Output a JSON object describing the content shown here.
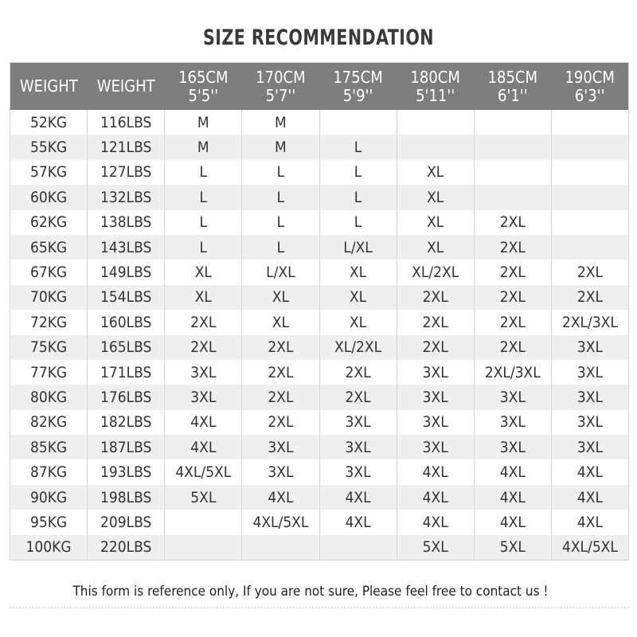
{
  "title": "SIZE RECOMMENDATION",
  "headers": [
    {
      "line1": "WEIGHT",
      "line2": ""
    },
    {
      "line1": "WEIGHT",
      "line2": ""
    },
    {
      "line1": "165CM",
      "line2": "5'5''"
    },
    {
      "line1": "170CM",
      "line2": "5'7''"
    },
    {
      "line1": "175CM",
      "line2": "5'9''"
    },
    {
      "line1": "180CM",
      "line2": "5'11''"
    },
    {
      "line1": "185CM",
      "line2": "6'1''"
    },
    {
      "line1": "190CM",
      "line2": "6'3''"
    }
  ],
  "rows": [
    [
      "52KG",
      "116LBS",
      "M",
      "M",
      "",
      "",
      "",
      ""
    ],
    [
      "55KG",
      "121LBS",
      "M",
      "M",
      "L",
      "",
      "",
      ""
    ],
    [
      "57KG",
      "127LBS",
      "L",
      "L",
      "L",
      "XL",
      "",
      ""
    ],
    [
      "60KG",
      "132LBS",
      "L",
      "L",
      "L",
      "XL",
      "",
      ""
    ],
    [
      "62KG",
      "138LBS",
      "L",
      "L",
      "L",
      "XL",
      "2XL",
      ""
    ],
    [
      "65KG",
      "143LBS",
      "L",
      "L",
      "L/XL",
      "XL",
      "2XL",
      ""
    ],
    [
      "67KG",
      "149LBS",
      "XL",
      "L/XL",
      "XL",
      "XL/2XL",
      "2XL",
      "2XL"
    ],
    [
      "70KG",
      "154LBS",
      "XL",
      "XL",
      "XL",
      "2XL",
      "2XL",
      "2XL"
    ],
    [
      "72KG",
      "160LBS",
      "2XL",
      "XL",
      "XL",
      "2XL",
      "2XL",
      "2XL/3XL"
    ],
    [
      "75KG",
      "165LBS",
      "2XL",
      "2XL",
      "XL/2XL",
      "2XL",
      "2XL",
      "3XL"
    ],
    [
      "77KG",
      "171LBS",
      "3XL",
      "2XL",
      "2XL",
      "3XL",
      "2XL/3XL",
      "3XL"
    ],
    [
      "80KG",
      "176LBS",
      "3XL",
      "2XL",
      "2XL",
      "3XL",
      "3XL",
      "3XL"
    ],
    [
      "82KG",
      "182LBS",
      "4XL",
      "2XL",
      "3XL",
      "3XL",
      "3XL",
      "3XL"
    ],
    [
      "85KG",
      "187LBS",
      "4XL",
      "3XL",
      "3XL",
      "3XL",
      "3XL",
      "3XL"
    ],
    [
      "87KG",
      "193LBS",
      "4XL/5XL",
      "3XL",
      "3XL",
      "4XL",
      "4XL",
      "4XL"
    ],
    [
      "90KG",
      "198LBS",
      "5XL",
      "4XL",
      "4XL",
      "4XL",
      "4XL",
      "4XL"
    ],
    [
      "95KG",
      "209LBS",
      "",
      "4XL/5XL",
      "4XL",
      "4XL",
      "4XL",
      "4XL"
    ],
    [
      "100KG",
      "220LBS",
      "",
      "",
      "",
      "5XL",
      "5XL",
      "4XL/5XL"
    ]
  ],
  "note": "This form is reference only, If you are not sure, Please feel free to contact us !"
}
